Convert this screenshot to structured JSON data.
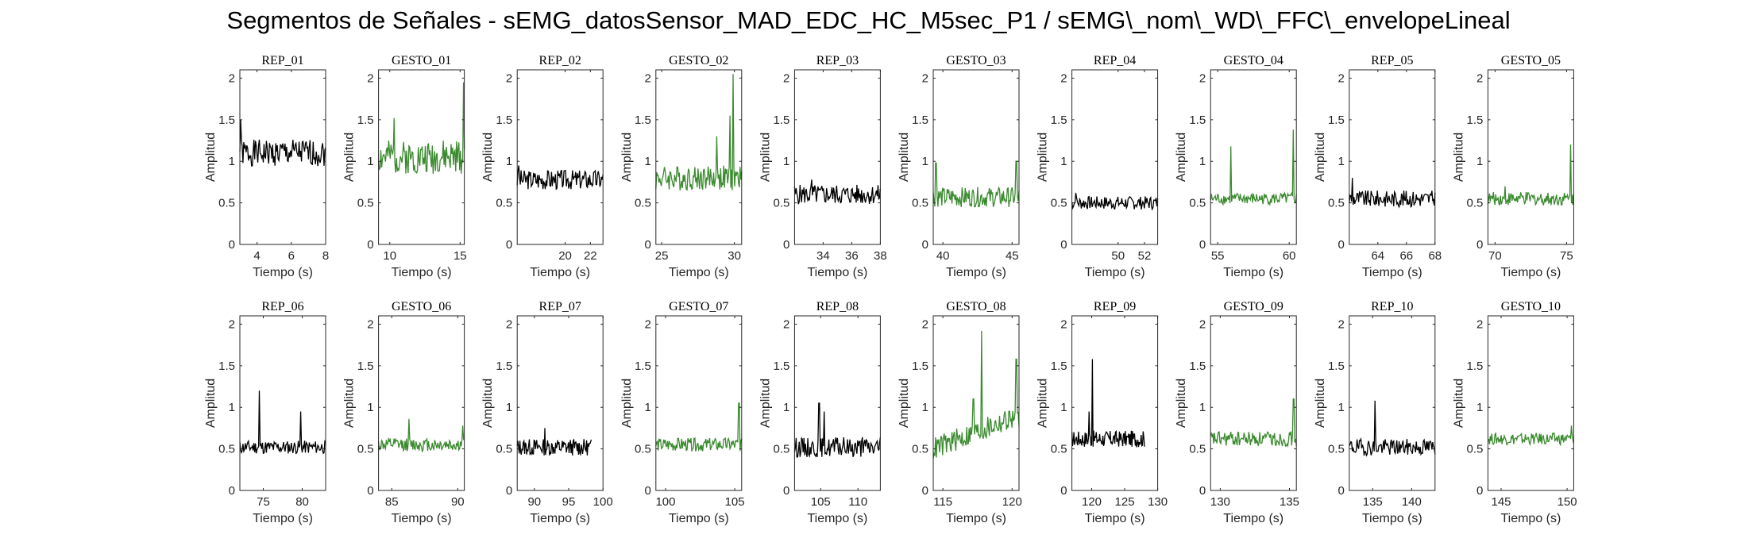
{
  "title": "Segmentos de Señales - sEMG_datosSensor_MAD_EDC_HC_M5sec_P1 / sEMG\\_nom\\_WD\\_FFC\\_envelopeLineal",
  "colors": {
    "rep": "#000000",
    "gesto": "#3a8a2e",
    "axis": "#262626"
  },
  "chart_data": [
    {
      "type": "line",
      "title": "REP_01",
      "color": "rep",
      "xlabel": "Tiempo (s)",
      "ylabel": "Amplitud",
      "xlim": [
        3,
        8
      ],
      "ylim": [
        0,
        2.1
      ],
      "xticks": [
        4,
        6,
        8
      ],
      "yticks": [
        0,
        0.5,
        1,
        1.5,
        2
      ],
      "base": 1.1,
      "noise": 0.16,
      "spikes": [
        [
          3.05,
          1.5
        ]
      ],
      "seed": 1
    },
    {
      "type": "line",
      "title": "GESTO_01",
      "color": "gesto",
      "xlabel": "Tiempo (s)",
      "ylabel": "Amplitud",
      "xlim": [
        9.2,
        15.3
      ],
      "ylim": [
        0,
        2.1
      ],
      "xticks": [
        10,
        15
      ],
      "yticks": [
        0,
        0.5,
        1,
        1.5,
        2
      ],
      "base": 1.05,
      "noise": 0.2,
      "spikes": [
        [
          10.3,
          1.52
        ],
        [
          15.25,
          1.95
        ]
      ],
      "seed": 2
    },
    {
      "type": "line",
      "title": "REP_02",
      "color": "rep",
      "xlabel": "Tiempo (s)",
      "ylabel": "Amplitud",
      "xlim": [
        16.2,
        23
      ],
      "ylim": [
        0,
        2.1
      ],
      "xticks": [
        20,
        22
      ],
      "yticks": [
        0,
        0.5,
        1,
        1.5,
        2
      ],
      "base": 0.78,
      "noise": 0.12,
      "spikes": [
        [
          16.3,
          0.95
        ]
      ],
      "seed": 3
    },
    {
      "type": "line",
      "title": "GESTO_02",
      "color": "gesto",
      "xlabel": "Tiempo (s)",
      "ylabel": "Amplitud",
      "xlim": [
        24.6,
        30.5
      ],
      "ylim": [
        0,
        2.1
      ],
      "xticks": [
        25,
        30
      ],
      "yticks": [
        0,
        0.5,
        1,
        1.5,
        2
      ],
      "base": 0.8,
      "noise": 0.15,
      "spikes": [
        [
          28.8,
          1.3
        ],
        [
          29.9,
          2.05
        ],
        [
          29.7,
          1.55
        ]
      ],
      "seed": 4
    },
    {
      "type": "line",
      "title": "REP_03",
      "color": "rep",
      "xlabel": "Tiempo (s)",
      "ylabel": "Amplitud",
      "xlim": [
        32,
        38
      ],
      "ylim": [
        0,
        2.1
      ],
      "xticks": [
        34,
        36,
        38
      ],
      "yticks": [
        0,
        0.5,
        1,
        1.5,
        2
      ],
      "base": 0.6,
      "noise": 0.12,
      "spikes": [
        [
          33.2,
          0.78
        ]
      ],
      "seed": 5
    },
    {
      "type": "line",
      "title": "GESTO_03",
      "color": "gesto",
      "xlabel": "Tiempo (s)",
      "ylabel": "Amplitud",
      "xlim": [
        39.3,
        45.5
      ],
      "ylim": [
        0,
        2.1
      ],
      "xticks": [
        40,
        45
      ],
      "yticks": [
        0,
        0.5,
        1,
        1.5,
        2
      ],
      "base": 0.57,
      "noise": 0.12,
      "spikes": [
        [
          39.5,
          0.98
        ],
        [
          45.3,
          1.0
        ]
      ],
      "seed": 6
    },
    {
      "type": "line",
      "title": "REP_04",
      "color": "rep",
      "xlabel": "Tiempo (s)",
      "ylabel": "Amplitud",
      "xlim": [
        46.5,
        53
      ],
      "ylim": [
        0,
        2.1
      ],
      "xticks": [
        50,
        52
      ],
      "yticks": [
        0,
        0.5,
        1,
        1.5,
        2
      ],
      "base": 0.5,
      "noise": 0.08,
      "spikes": [
        [
          46.8,
          0.62
        ]
      ],
      "seed": 7
    },
    {
      "type": "line",
      "title": "GESTO_04",
      "color": "gesto",
      "xlabel": "Tiempo (s)",
      "ylabel": "Amplitud",
      "xlim": [
        54.5,
        60.5
      ],
      "ylim": [
        0,
        2.1
      ],
      "xticks": [
        55,
        60
      ],
      "yticks": [
        0,
        0.5,
        1,
        1.5,
        2
      ],
      "base": 0.55,
      "noise": 0.07,
      "spikes": [
        [
          55.9,
          1.18
        ],
        [
          60.3,
          1.38
        ]
      ],
      "seed": 8
    },
    {
      "type": "line",
      "title": "REP_05",
      "color": "rep",
      "xlabel": "Tiempo (s)",
      "ylabel": "Amplitud",
      "xlim": [
        62,
        68
      ],
      "ylim": [
        0,
        2.1
      ],
      "xticks": [
        64,
        66,
        68
      ],
      "yticks": [
        0,
        0.5,
        1,
        1.5,
        2
      ],
      "base": 0.55,
      "noise": 0.1,
      "spikes": [
        [
          62.2,
          0.8
        ]
      ],
      "seed": 9
    },
    {
      "type": "line",
      "title": "GESTO_05",
      "color": "gesto",
      "xlabel": "Tiempo (s)",
      "ylabel": "Amplitud",
      "xlim": [
        69.5,
        75.5
      ],
      "ylim": [
        0,
        2.1
      ],
      "xticks": [
        70,
        75
      ],
      "yticks": [
        0,
        0.5,
        1,
        1.5,
        2
      ],
      "base": 0.55,
      "noise": 0.08,
      "spikes": [
        [
          70.7,
          0.7
        ],
        [
          75.3,
          1.2
        ]
      ],
      "seed": 10
    },
    {
      "type": "line",
      "title": "REP_06",
      "color": "rep",
      "xlabel": "Tiempo (s)",
      "ylabel": "Amplitud",
      "xlim": [
        72,
        83
      ],
      "ylim": [
        0,
        2.1
      ],
      "xticks": [
        75,
        80
      ],
      "yticks": [
        0,
        0.5,
        1,
        1.5,
        2
      ],
      "base": 0.52,
      "noise": 0.08,
      "spikes": [
        [
          74.5,
          1.2
        ],
        [
          79.8,
          0.95
        ]
      ],
      "seed": 11
    },
    {
      "type": "line",
      "title": "GESTO_06",
      "color": "gesto",
      "xlabel": "Tiempo (s)",
      "ylabel": "Amplitud",
      "xlim": [
        84,
        90.5
      ],
      "ylim": [
        0,
        2.1
      ],
      "xticks": [
        85,
        90
      ],
      "yticks": [
        0,
        0.5,
        1,
        1.5,
        2
      ],
      "base": 0.55,
      "noise": 0.08,
      "spikes": [
        [
          86.3,
          0.86
        ],
        [
          90.4,
          0.78
        ]
      ],
      "seed": 12
    },
    {
      "type": "line",
      "title": "REP_07",
      "color": "rep",
      "xlabel": "Tiempo (s)",
      "ylabel": "Amplitud",
      "xlim": [
        87.5,
        100
      ],
      "ylim": [
        0,
        2.1
      ],
      "xticks": [
        90,
        95,
        100
      ],
      "yticks": [
        0,
        0.5,
        1,
        1.5,
        2
      ],
      "base": 0.52,
      "noise": 0.1,
      "spikes": [
        [
          91.5,
          0.75
        ]
      ],
      "seed": 13,
      "xend": 98.3
    },
    {
      "type": "line",
      "title": "GESTO_07",
      "color": "gesto",
      "xlabel": "Tiempo (s)",
      "ylabel": "Amplitud",
      "xlim": [
        99.3,
        105.5
      ],
      "ylim": [
        0,
        2.1
      ],
      "xticks": [
        100,
        105
      ],
      "yticks": [
        0,
        0.5,
        1,
        1.5,
        2
      ],
      "base": 0.55,
      "noise": 0.08,
      "spikes": [
        [
          105.3,
          1.05
        ]
      ],
      "seed": 14
    },
    {
      "type": "line",
      "title": "REP_08",
      "color": "rep",
      "xlabel": "Tiempo (s)",
      "ylabel": "Amplitud",
      "xlim": [
        101.5,
        113
      ],
      "ylim": [
        0,
        2.1
      ],
      "xticks": [
        105,
        110
      ],
      "yticks": [
        0,
        0.5,
        1,
        1.5,
        2
      ],
      "base": 0.52,
      "noise": 0.12,
      "spikes": [
        [
          104.8,
          1.05
        ],
        [
          105.5,
          0.95
        ]
      ],
      "seed": 15
    },
    {
      "type": "line",
      "title": "GESTO_08",
      "color": "gesto",
      "xlabel": "Tiempo (s)",
      "ylabel": "Amplitud",
      "xlim": [
        114.3,
        120.5
      ],
      "ylim": [
        0,
        2.1
      ],
      "xticks": [
        115,
        120
      ],
      "yticks": [
        0,
        0.5,
        1,
        1.5,
        2
      ],
      "base": 0.7,
      "noise": 0.14,
      "spikes": [
        [
          117.8,
          1.92
        ],
        [
          120.3,
          1.58
        ],
        [
          117.2,
          1.1
        ]
      ],
      "seed": 16,
      "trend": 0.4
    },
    {
      "type": "line",
      "title": "REP_09",
      "color": "rep",
      "xlabel": "Tiempo (s)",
      "ylabel": "Amplitud",
      "xlim": [
        117,
        130
      ],
      "ylim": [
        0,
        2.1
      ],
      "xticks": [
        120,
        125,
        130
      ],
      "yticks": [
        0,
        0.5,
        1,
        1.5,
        2
      ],
      "base": 0.62,
      "noise": 0.1,
      "spikes": [
        [
          120.1,
          1.58
        ],
        [
          119.6,
          0.95
        ]
      ],
      "seed": 17,
      "xend": 128
    },
    {
      "type": "line",
      "title": "GESTO_09",
      "color": "gesto",
      "xlabel": "Tiempo (s)",
      "ylabel": "Amplitud",
      "xlim": [
        129.3,
        135.5
      ],
      "ylim": [
        0,
        2.1
      ],
      "xticks": [
        130,
        135
      ],
      "yticks": [
        0,
        0.5,
        1,
        1.5,
        2
      ],
      "base": 0.62,
      "noise": 0.09,
      "spikes": [
        [
          135.3,
          1.1
        ]
      ],
      "seed": 18
    },
    {
      "type": "line",
      "title": "REP_10",
      "color": "rep",
      "xlabel": "Tiempo (s)",
      "ylabel": "Amplitud",
      "xlim": [
        132,
        143
      ],
      "ylim": [
        0,
        2.1
      ],
      "xticks": [
        135,
        140
      ],
      "yticks": [
        0,
        0.5,
        1,
        1.5,
        2
      ],
      "base": 0.52,
      "noise": 0.1,
      "spikes": [
        [
          135.3,
          1.08
        ]
      ],
      "seed": 19
    },
    {
      "type": "line",
      "title": "GESTO_10",
      "color": "gesto",
      "xlabel": "Tiempo (s)",
      "ylabel": "Amplitud",
      "xlim": [
        144,
        150.5
      ],
      "ylim": [
        0,
        2.1
      ],
      "xticks": [
        145,
        150
      ],
      "yticks": [
        0,
        0.5,
        1,
        1.5,
        2
      ],
      "base": 0.62,
      "noise": 0.07,
      "spikes": [
        [
          150.3,
          0.78
        ]
      ],
      "seed": 20
    }
  ]
}
